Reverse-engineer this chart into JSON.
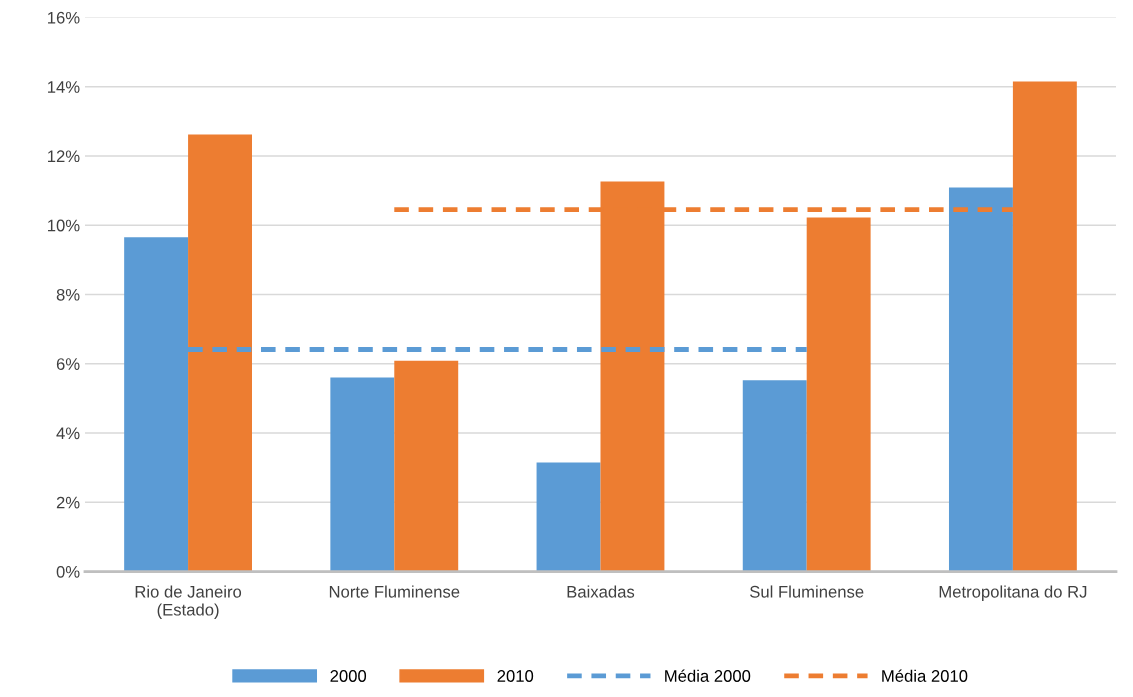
{
  "chart_data": {
    "type": "bar",
    "categories": [
      "Rio de Janeiro\n(Estado)",
      "Norte Fluminense",
      "Baixadas",
      "Sul Fluminense",
      "Metropolitana do RJ"
    ],
    "series": [
      {
        "name": "2000",
        "color": "#5b9bd5",
        "values": [
          9.65,
          5.6,
          3.15,
          5.52,
          11.09
        ]
      },
      {
        "name": "2010",
        "color": "#ed7d31",
        "values": [
          12.62,
          6.09,
          11.26,
          10.22,
          14.15
        ]
      },
      {
        "name": "Média 2000",
        "type": "line",
        "line_style": "dashed",
        "color": "#5b9bd5",
        "values": [
          6.41,
          6.41,
          6.41,
          6.41,
          null
        ]
      },
      {
        "name": "Média 2010",
        "type": "line",
        "line_style": "dashed",
        "color": "#ed7d31",
        "values": [
          null,
          10.45,
          10.45,
          10.45,
          10.45
        ]
      }
    ],
    "ylim": [
      0,
      16
    ],
    "yticks": [
      {
        "value": 0,
        "label": "0%"
      },
      {
        "value": 2,
        "label": "2%"
      },
      {
        "value": 4,
        "label": "4%"
      },
      {
        "value": 6,
        "label": "6%"
      },
      {
        "value": 8,
        "label": "8%"
      },
      {
        "value": 10,
        "label": "10%"
      },
      {
        "value": 12,
        "label": "12%"
      },
      {
        "value": 14,
        "label": "14%"
      },
      {
        "value": 16,
        "label": "16%"
      }
    ],
    "grid": "y",
    "legend": "bottom"
  }
}
